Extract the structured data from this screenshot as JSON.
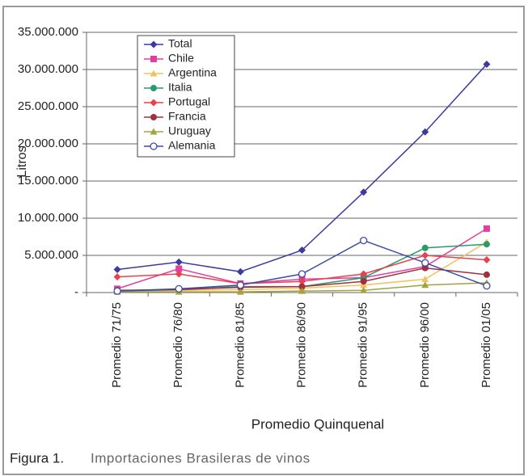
{
  "chart_data": {
    "type": "line",
    "y_label": "Litros",
    "x_label": "Promedio Quinquenal",
    "caption_prefix": "Figura 1.",
    "caption": "Importaciones Brasileras de vinos",
    "categories": [
      "Promedio 71/75",
      "Promedio 76/80",
      "Promedio 81/85",
      "Promedio 86/90",
      "Promedio 91/95",
      "Promedio 96/00",
      "Promedio 01/05"
    ],
    "ylim": [
      0,
      35000000
    ],
    "yticks": [
      {
        "value": 0,
        "label": "-"
      },
      {
        "value": 5000000,
        "label": "5.000.000"
      },
      {
        "value": 10000000,
        "label": "10.000.000"
      },
      {
        "value": 15000000,
        "label": "15.000.000"
      },
      {
        "value": 20000000,
        "label": "20.000.000"
      },
      {
        "value": 25000000,
        "label": "25.000.000"
      },
      {
        "value": 30000000,
        "label": "30.000.000"
      },
      {
        "value": 35000000,
        "label": "35.000.000"
      }
    ],
    "grid": true,
    "legend": "upper left",
    "series": [
      {
        "name": "Total",
        "color": "#3b3b9e",
        "marker": "diamond",
        "values": [
          3100000,
          4100000,
          2800000,
          5700000,
          13500000,
          21600000,
          30700000
        ]
      },
      {
        "name": "Chile",
        "color": "#e23ea0",
        "marker": "square",
        "values": [
          500000,
          3200000,
          1200000,
          1800000,
          2000000,
          3500000,
          8600000
        ]
      },
      {
        "name": "Argentina",
        "color": "#f2c25e",
        "marker": "triangle",
        "values": [
          200000,
          300000,
          400000,
          600000,
          1000000,
          1800000,
          6800000
        ]
      },
      {
        "name": "Italia",
        "color": "#2a9a6a",
        "marker": "circle",
        "values": [
          200000,
          400000,
          800000,
          800000,
          2000000,
          6000000,
          6500000
        ]
      },
      {
        "name": "Portugal",
        "color": "#e8414f",
        "marker": "diamond",
        "values": [
          2100000,
          2500000,
          1200000,
          1500000,
          2500000,
          5000000,
          4400000
        ]
      },
      {
        "name": "Francia",
        "color": "#9e3040",
        "marker": "circle",
        "values": [
          300000,
          400000,
          700000,
          800000,
          1500000,
          3300000,
          2400000
        ]
      },
      {
        "name": "Uruguay",
        "color": "#a3a23e",
        "marker": "triangle",
        "values": [
          100000,
          100000,
          100000,
          200000,
          300000,
          1000000,
          1300000
        ]
      },
      {
        "name": "Alemania",
        "color": "#3c4aa8",
        "marker": "open-circle",
        "values": [
          200000,
          500000,
          1000000,
          2500000,
          7000000,
          4000000,
          900000
        ]
      }
    ]
  }
}
